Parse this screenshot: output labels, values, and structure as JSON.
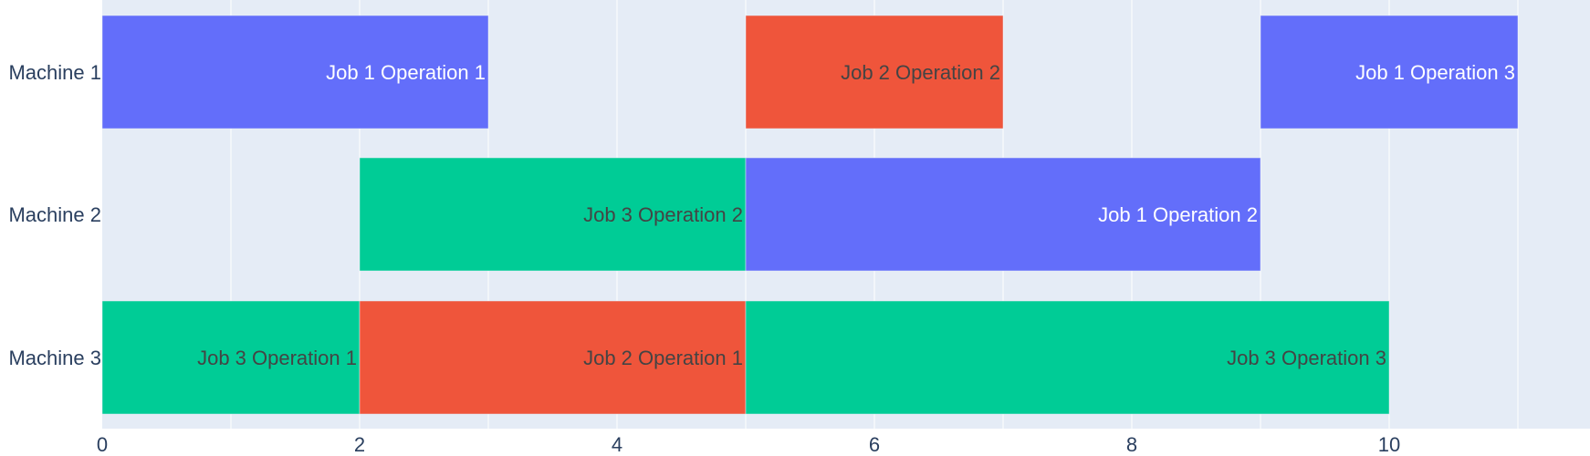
{
  "chart_data": {
    "type": "bar",
    "orientation": "horizontal",
    "subtype": "gantt",
    "title": "",
    "xlabel": "",
    "ylabel": "",
    "xlim": [
      0,
      11.5
    ],
    "x_ticks": [
      0,
      2,
      4,
      6,
      8,
      10
    ],
    "grid": true,
    "legend": "none",
    "categories": [
      "Machine 1",
      "Machine 2",
      "Machine 3"
    ],
    "job_colors": {
      "Job 1": "#636efa",
      "Job 2": "#ef553b",
      "Job 3": "#00cc96"
    },
    "plot_background": "#e5ecf6",
    "tasks": [
      {
        "machine": "Machine 1",
        "job": "Job 1",
        "label": "Job 1 Operation 1",
        "start": 0,
        "end": 3,
        "label_color": "#ffffff"
      },
      {
        "machine": "Machine 1",
        "job": "Job 2",
        "label": "Job 2 Operation 2",
        "start": 5,
        "end": 7,
        "label_color": "#444444"
      },
      {
        "machine": "Machine 1",
        "job": "Job 1",
        "label": "Job 1 Operation 3",
        "start": 9,
        "end": 11,
        "label_color": "#ffffff"
      },
      {
        "machine": "Machine 2",
        "job": "Job 3",
        "label": "Job 3 Operation 2",
        "start": 2,
        "end": 5,
        "label_color": "#444444"
      },
      {
        "machine": "Machine 2",
        "job": "Job 1",
        "label": "Job 1 Operation 2",
        "start": 5,
        "end": 9,
        "label_color": "#ffffff"
      },
      {
        "machine": "Machine 3",
        "job": "Job 3",
        "label": "Job 3 Operation 1",
        "start": 0,
        "end": 2,
        "label_color": "#444444"
      },
      {
        "machine": "Machine 3",
        "job": "Job 2",
        "label": "Job 2 Operation 1",
        "start": 2,
        "end": 5,
        "label_color": "#444444"
      },
      {
        "machine": "Machine 3",
        "job": "Job 3",
        "label": "Job 3 Operation 3",
        "start": 5,
        "end": 10,
        "label_color": "#444444"
      }
    ]
  }
}
